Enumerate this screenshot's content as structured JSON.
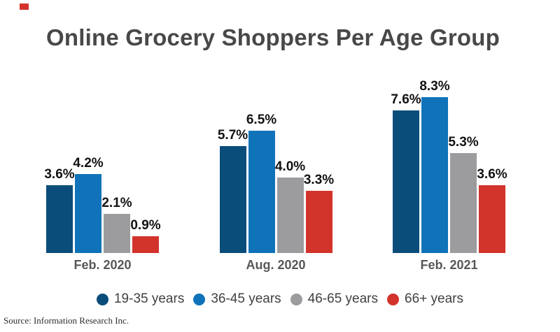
{
  "accent_square_color": "#d2332b",
  "title": "Online Grocery Shoppers Per Age Group",
  "source": "Source: Information Research Inc.",
  "chart_data": {
    "type": "bar",
    "title": "Online Grocery Shoppers Per Age Group",
    "categories": [
      "Feb. 2020",
      "Aug. 2020",
      "Feb. 2021"
    ],
    "series": [
      {
        "name": "19-35 years",
        "color": "#0b4d7a",
        "values": [
          3.6,
          5.7,
          7.6
        ]
      },
      {
        "name": "36-45 years",
        "color": "#1073b9",
        "values": [
          4.2,
          6.5,
          8.3
        ]
      },
      {
        "name": "46-65 years",
        "color": "#9c9c9e",
        "values": [
          2.1,
          4.0,
          5.3
        ]
      },
      {
        "name": "66+ years",
        "color": "#d2332b",
        "values": [
          0.9,
          3.3,
          3.6
        ]
      }
    ],
    "labels": [
      [
        "3.6%",
        "4.2%",
        "2.1%",
        "0.9%"
      ],
      [
        "5.7%",
        "6.5%",
        "4.0%",
        "3.3%"
      ],
      [
        "7.6%",
        "8.3%",
        "5.3%",
        "3.6%"
      ]
    ],
    "unit": "%",
    "ylim": [
      0,
      9
    ],
    "grid": false,
    "axis_lines": false,
    "value_labels": "above-bars",
    "legend_position": "bottom"
  }
}
